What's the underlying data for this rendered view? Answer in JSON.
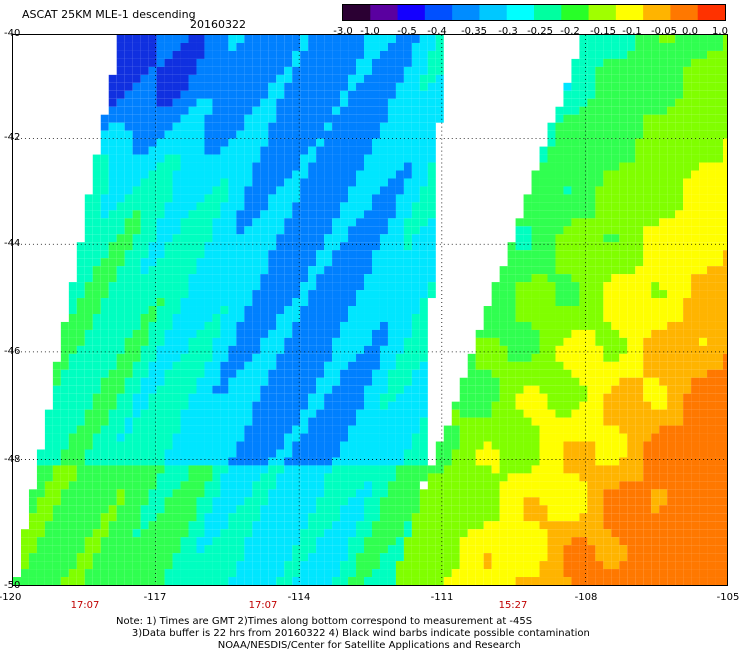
{
  "header": {
    "title": "ASCAT 25KM MLE-1 descending",
    "date": "20160322"
  },
  "colorbar": {
    "labels": [
      "-3.0",
      "-1.0",
      "-0.5",
      "-0.4",
      "-0.35",
      "-0.3",
      "-0.25",
      "-0.2",
      "-0.15",
      "-0.1",
      "-0.05",
      "0.0",
      "1.0"
    ],
    "colors": [
      "#2b0033",
      "#5a00a0",
      "#1400ff",
      "#0050ff",
      "#008cff",
      "#00c8ff",
      "#00ffff",
      "#00ffa0",
      "#28ff28",
      "#a0ff00",
      "#ffff00",
      "#ffb400",
      "#ff7800",
      "#ff3200"
    ]
  },
  "axes": {
    "lat_labels": [
      "-40",
      "-42",
      "-44",
      "-46",
      "-48",
      "-50"
    ],
    "lon_labels": [
      "-120",
      "-117",
      "-114",
      "-111",
      "-108",
      "-105"
    ],
    "time_labels": [
      "17:07",
      "17:07",
      "15:27"
    ]
  },
  "notes": {
    "line1": "Note: 1) Times are GMT 2)Times along bottom correspond to measurement at -45S",
    "line2": "3)Data buffer is 22 hrs from 20160322 4) Black wind barbs indicate possible contamination",
    "line3": "NOAA/NESDIS/Center for Satellite Applications and Research"
  }
}
